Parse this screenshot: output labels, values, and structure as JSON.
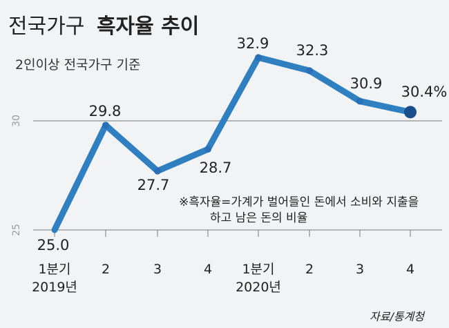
{
  "title": {
    "light": "전국가구",
    "bold": "흑자율 추이"
  },
  "subtitle": "2인이상 전국가구 기준",
  "note": [
    "※흑자율=가계가 벌어들인 돈에서 소비와 지출을",
    "하고 남은 돈의 비율"
  ],
  "source": "자료/통계청",
  "colors": {
    "line": "#2f7fc1",
    "marker": "#2a70b8",
    "last_marker": "#1a4f8c",
    "grid": "#8f8f8f",
    "tick_text": "#9a9a9a"
  },
  "chart_data": {
    "type": "line",
    "categories": [
      "1분기",
      "2",
      "3",
      "4",
      "1분기",
      "2",
      "3",
      "4"
    ],
    "year_labels": [
      "2019년",
      "",
      "",
      "",
      "2020년",
      "",
      "",
      ""
    ],
    "values": [
      25.0,
      29.8,
      27.7,
      28.7,
      32.9,
      32.3,
      30.9,
      30.4
    ],
    "data_labels": [
      "25.0",
      "29.8",
      "27.7",
      "28.7",
      "32.9",
      "32.3",
      "30.9",
      "30.4%"
    ],
    "y_ticks": [
      25,
      30
    ],
    "ylim": [
      25,
      33
    ],
    "grid": true
  }
}
